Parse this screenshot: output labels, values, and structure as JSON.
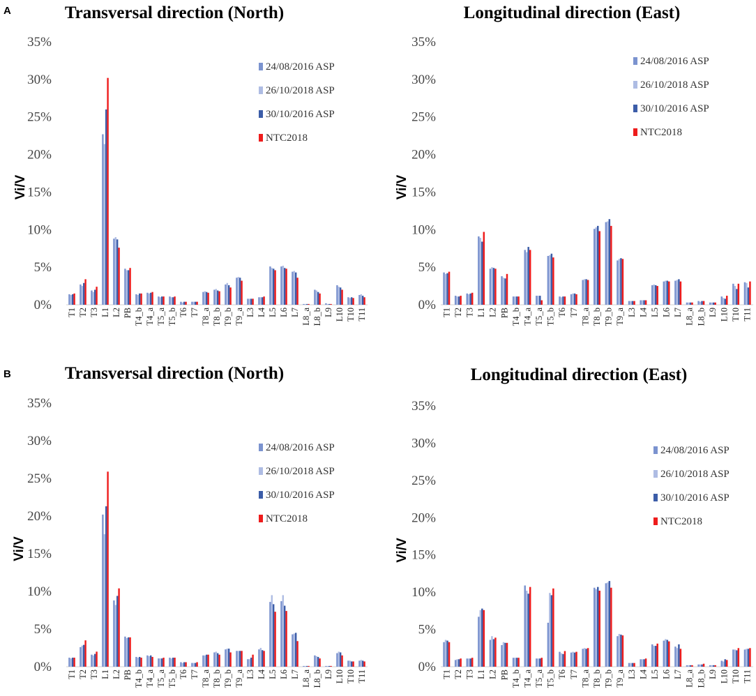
{
  "panels": [
    {
      "letter": "A",
      "charts": [
        0,
        1
      ]
    },
    {
      "letter": "B",
      "charts": [
        2,
        3
      ]
    }
  ],
  "legend": {
    "labels": [
      "24/08/2016 ASP",
      "26/10/2018 ASP",
      "30/10/2016 ASP",
      "NTC2018"
    ],
    "colors": [
      "#7b93cf",
      "#aebce3",
      "#3c5da8",
      "#ee1c1c"
    ]
  },
  "chart_data": [
    {
      "type": "bar",
      "panel": "A",
      "title": "Transversal direction (North)",
      "xlabel": "",
      "ylabel": "Vi/V",
      "ylim": [
        0,
        35
      ],
      "yticks": [
        "0%",
        "5%",
        "10%",
        "15%",
        "20%",
        "25%",
        "30%",
        "35%"
      ],
      "legend_position": "upper-right",
      "categories": [
        "T1",
        "T2",
        "T3",
        "L1",
        "L2",
        "PB",
        "T4_b",
        "T4_a",
        "T5_a",
        "T5_b",
        "T6",
        "T7",
        "T8_a",
        "T8_b",
        "T9_b",
        "T9_a",
        "L3",
        "L4",
        "L5",
        "L6",
        "L7",
        "L8_a",
        "L8_b",
        "L9",
        "L10",
        "T10",
        "T11"
      ],
      "series": [
        {
          "name": "24/08/2016 ASP",
          "values": [
            1.4,
            2.7,
            1.9,
            22.7,
            8.8,
            4.8,
            1.4,
            1.6,
            1.1,
            1.1,
            0.4,
            0.4,
            1.7,
            2.0,
            2.7,
            3.6,
            0.8,
            1.0,
            5.1,
            5.1,
            4.4,
            0.1,
            2.0,
            0.2,
            2.6,
            1.0,
            1.3
          ]
        },
        {
          "name": "26/10/2018 ASP",
          "values": [
            1.3,
            2.5,
            1.7,
            21.4,
            9.0,
            4.6,
            1.3,
            1.5,
            1.0,
            1.0,
            0.3,
            0.4,
            1.8,
            2.1,
            2.9,
            3.7,
            0.8,
            1.0,
            4.9,
            5.2,
            4.5,
            0.1,
            1.9,
            0.1,
            2.4,
            0.9,
            1.4
          ]
        },
        {
          "name": "30/10/2016 ASP",
          "values": [
            1.4,
            2.9,
            2.0,
            26.0,
            8.7,
            4.6,
            1.5,
            1.6,
            1.1,
            1.0,
            0.4,
            0.4,
            1.7,
            1.9,
            2.6,
            3.6,
            0.8,
            1.0,
            4.8,
            4.9,
            4.3,
            0.1,
            1.7,
            0.1,
            2.3,
            1.0,
            1.2
          ]
        },
        {
          "name": "NTC2018",
          "values": [
            1.5,
            3.4,
            2.4,
            30.2,
            7.6,
            4.9,
            1.5,
            1.7,
            1.1,
            1.1,
            0.4,
            0.4,
            1.6,
            1.8,
            2.3,
            3.2,
            0.8,
            1.1,
            4.6,
            4.8,
            3.6,
            0.1,
            1.5,
            0.1,
            2.0,
            0.9,
            1.0
          ]
        }
      ]
    },
    {
      "type": "bar",
      "panel": "A",
      "title": "Longitudinal direction (East)",
      "xlabel": "",
      "ylabel": "Vi/V",
      "ylim": [
        0,
        35
      ],
      "yticks": [
        "0%",
        "5%",
        "10%",
        "15%",
        "20%",
        "25%",
        "30%",
        "35%"
      ],
      "legend_position": "upper-right",
      "categories": [
        "T1",
        "T2",
        "T3",
        "L1",
        "L2",
        "PB",
        "T4_b",
        "T4_a",
        "T5_a",
        "T5_b",
        "T6",
        "T7",
        "T8_a",
        "T8_b",
        "T9_b",
        "T9_a",
        "L3",
        "L4",
        "L5",
        "L6",
        "L7",
        "L8_a",
        "L8_b",
        "L9",
        "L10",
        "T10",
        "T11"
      ],
      "series": [
        {
          "name": "24/08/2016 ASP",
          "values": [
            4.3,
            1.2,
            1.5,
            9.1,
            4.8,
            3.8,
            1.1,
            7.3,
            1.2,
            6.5,
            1.1,
            1.4,
            3.3,
            10.1,
            11.0,
            5.9,
            0.5,
            0.6,
            2.6,
            3.1,
            3.2,
            0.3,
            0.5,
            0.3,
            1.1,
            2.8,
            3.0
          ]
        },
        {
          "name": "26/10/2018 ASP",
          "values": [
            4.1,
            1.1,
            1.4,
            8.9,
            5.0,
            3.6,
            1.1,
            7.0,
            1.2,
            6.6,
            1.0,
            1.5,
            3.4,
            10.3,
            11.1,
            6.1,
            0.5,
            0.6,
            2.7,
            3.2,
            3.3,
            0.3,
            0.4,
            0.3,
            0.9,
            2.5,
            2.9
          ]
        },
        {
          "name": "30/10/2016 ASP",
          "values": [
            4.2,
            1.1,
            1.5,
            8.4,
            4.9,
            3.5,
            1.1,
            7.7,
            1.2,
            6.8,
            1.1,
            1.5,
            3.4,
            10.5,
            11.4,
            6.2,
            0.5,
            0.6,
            2.6,
            3.2,
            3.4,
            0.3,
            0.5,
            0.3,
            0.8,
            2.1,
            2.3
          ]
        },
        {
          "name": "NTC2018",
          "values": [
            4.4,
            1.2,
            1.6,
            9.7,
            4.8,
            4.1,
            1.1,
            7.3,
            0.6,
            6.3,
            1.1,
            1.4,
            3.3,
            9.8,
            10.5,
            6.1,
            0.5,
            0.6,
            2.5,
            3.1,
            3.1,
            0.3,
            0.5,
            0.3,
            1.2,
            2.8,
            3.1
          ]
        }
      ]
    },
    {
      "type": "bar",
      "panel": "B",
      "title": "Transversal direction (North)",
      "xlabel": "",
      "ylabel": "Vi/V",
      "ylim": [
        0,
        35
      ],
      "yticks": [
        "0%",
        "5%",
        "10%",
        "15%",
        "20%",
        "25%",
        "30%",
        "35%"
      ],
      "legend_position": "upper-right",
      "categories": [
        "T1",
        "T2",
        "T3",
        "L1",
        "L2",
        "PB",
        "T4_b",
        "T4_a",
        "T5_a",
        "T5_b",
        "T6",
        "T7",
        "T8_a",
        "T8_b",
        "T9_b",
        "T9_a",
        "L3",
        "L4",
        "L5",
        "L6",
        "L7",
        "L8_a",
        "L8_b",
        "L9",
        "L10",
        "T10",
        "T11"
      ],
      "series": [
        {
          "name": "24/08/2016 ASP",
          "values": [
            1.2,
            2.6,
            1.6,
            20.2,
            8.8,
            4.0,
            1.3,
            1.5,
            1.1,
            1.2,
            0.6,
            0.5,
            1.5,
            1.9,
            2.3,
            2.1,
            1.0,
            2.3,
            8.6,
            8.7,
            4.3,
            0.1,
            1.5,
            0.1,
            1.8,
            0.8,
            0.8
          ]
        },
        {
          "name": "26/10/2018 ASP",
          "values": [
            1.1,
            2.8,
            1.5,
            17.6,
            8.2,
            3.8,
            1.2,
            1.4,
            1.1,
            1.1,
            0.5,
            0.5,
            1.5,
            2.0,
            2.4,
            2.1,
            1.0,
            2.5,
            9.5,
            9.5,
            4.4,
            0.1,
            1.4,
            0.1,
            2.0,
            0.8,
            0.9
          ]
        },
        {
          "name": "30/10/2016 ASP",
          "values": [
            1.2,
            2.9,
            1.7,
            21.3,
            9.4,
            3.9,
            1.3,
            1.5,
            1.1,
            1.2,
            0.6,
            0.5,
            1.6,
            1.8,
            2.4,
            2.1,
            1.2,
            2.2,
            8.3,
            8.1,
            4.5,
            0.1,
            1.3,
            0.1,
            1.9,
            0.7,
            0.8
          ]
        },
        {
          "name": "NTC2018",
          "values": [
            1.2,
            3.5,
            2.0,
            25.9,
            10.4,
            3.9,
            1.2,
            1.3,
            1.2,
            1.2,
            0.6,
            0.6,
            1.6,
            1.6,
            1.9,
            2.1,
            1.6,
            2.1,
            7.3,
            7.4,
            3.4,
            0.1,
            1.1,
            0.1,
            1.5,
            0.7,
            0.7
          ]
        }
      ]
    },
    {
      "type": "bar",
      "panel": "B",
      "title": "Longitudinal direction (East)",
      "xlabel": "",
      "ylabel": "Vi/V",
      "ylim": [
        0,
        35
      ],
      "yticks": [
        "0%",
        "5%",
        "10%",
        "15%",
        "20%",
        "25%",
        "30%",
        "35%"
      ],
      "legend_position": "right",
      "categories": [
        "T1",
        "T2",
        "T3",
        "L1",
        "L2",
        "PB",
        "T4_b",
        "T4_a",
        "T5_a",
        "T5_b",
        "T6",
        "T7",
        "T8_a",
        "T8_b",
        "T9_b",
        "T9_a",
        "L3",
        "L4",
        "L5",
        "L6",
        "L7",
        "L8_a",
        "L8_b",
        "L9",
        "L10",
        "T10",
        "T11"
      ],
      "series": [
        {
          "name": "24/08/2016 ASP",
          "values": [
            3.3,
            0.9,
            1.1,
            6.7,
            3.6,
            2.9,
            1.2,
            10.9,
            1.1,
            5.9,
            2.0,
            1.9,
            2.4,
            10.6,
            11.2,
            4.1,
            0.5,
            1.0,
            3.0,
            3.5,
            2.7,
            0.2,
            0.3,
            0.2,
            0.8,
            2.3,
            2.3
          ]
        },
        {
          "name": "26/10/2018 ASP",
          "values": [
            3.6,
            1.0,
            1.1,
            7.6,
            4.1,
            3.3,
            1.2,
            10.2,
            1.1,
            9.9,
            1.8,
            2.0,
            2.5,
            10.4,
            11.3,
            4.4,
            0.5,
            1.0,
            2.8,
            3.7,
            2.5,
            0.2,
            0.3,
            0.2,
            0.7,
            2.3,
            2.4
          ]
        },
        {
          "name": "30/10/2016 ASP",
          "values": [
            3.5,
            1.0,
            1.1,
            7.8,
            3.7,
            3.2,
            1.2,
            9.8,
            1.1,
            9.6,
            1.7,
            1.9,
            2.4,
            10.7,
            11.5,
            4.3,
            0.5,
            1.0,
            2.8,
            3.6,
            3.0,
            0.2,
            0.3,
            0.2,
            1.0,
            2.2,
            2.4
          ]
        },
        {
          "name": "NTC2018",
          "values": [
            3.3,
            1.1,
            1.2,
            7.6,
            3.9,
            3.2,
            1.2,
            10.7,
            1.2,
            10.5,
            2.1,
            2.0,
            2.5,
            10.2,
            10.6,
            4.2,
            0.5,
            1.1,
            3.1,
            3.4,
            2.4,
            0.2,
            0.4,
            0.2,
            0.9,
            2.5,
            2.5
          ]
        }
      ]
    }
  ]
}
